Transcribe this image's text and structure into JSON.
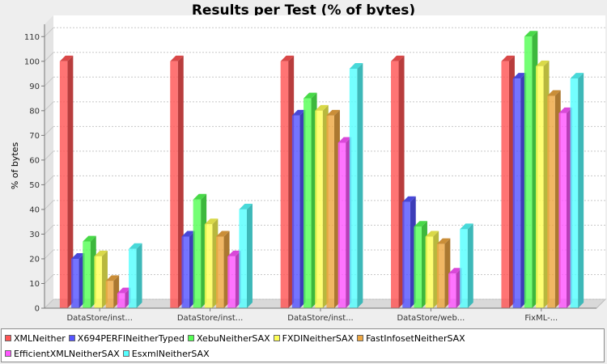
{
  "chart_data": {
    "type": "bar",
    "title": "Results per Test (% of bytes)",
    "xlabel": "",
    "ylabel": "% of bytes",
    "ylim": [
      0,
      115
    ],
    "yticks": [
      0,
      10,
      20,
      30,
      40,
      50,
      60,
      70,
      80,
      90,
      100,
      110
    ],
    "grid": "horizontal",
    "legend_position": "bottom",
    "categories": [
      "DataStore/inst...",
      "DataStore/inst...",
      "DataStore/inst...",
      "DataStore/web...",
      "FixML-..."
    ],
    "series": [
      {
        "name": "XMLNeither",
        "color": "#ff5555",
        "values": [
          100,
          100,
          100,
          100,
          100
        ]
      },
      {
        "name": "X694PERFINeitherTyped",
        "color": "#5555ff",
        "values": [
          20,
          29,
          78,
          43,
          93
        ]
      },
      {
        "name": "XebuNeitherSAX",
        "color": "#55ff55",
        "values": [
          27,
          44,
          85,
          33,
          110
        ]
      },
      {
        "name": "FXDINeitherSAX",
        "color": "#ffff55",
        "values": [
          21,
          34,
          80,
          29,
          98
        ]
      },
      {
        "name": "FastInfosetNeitherSAX",
        "color": "#eea742",
        "values": [
          11,
          29,
          78,
          26,
          86
        ]
      },
      {
        "name": "EfficientXMLNeitherSAX",
        "color": "#ff55ff",
        "values": [
          6,
          21,
          67,
          14,
          79
        ]
      },
      {
        "name": "EsxmlNeitherSAX",
        "color": "#55ffff",
        "values": [
          24,
          40,
          97,
          32,
          93
        ]
      }
    ]
  }
}
